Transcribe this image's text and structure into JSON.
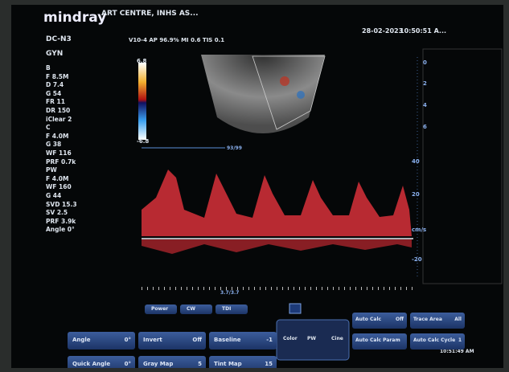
{
  "header": {
    "brand": "mindray",
    "site": "ART CENTRE, INHS AS...",
    "date": "28-02-2023",
    "time": "10:50:51 A..."
  },
  "probe": "DC-N3",
  "exam": "GYN",
  "acoustic": "V10-4  AP 96.9%  MI 0.6  TIS 0.1",
  "params": [
    "B",
    "F 8.5M",
    "D 7.4",
    "G 54",
    "FR 11",
    "DR 150",
    "iClear 2",
    "C",
    "F 4.0M",
    "G 38",
    "WF 116",
    "PRF 0.7k",
    "PW",
    "F 4.0M",
    "WF 160",
    "G 44",
    "SVD 15.3",
    "SV 2.5",
    "PRF 3.9k",
    "Angle 0°"
  ],
  "color_bar": {
    "top": "6.8",
    "bottom": "-6.8"
  },
  "color_frame": "93/99",
  "depth_scale": [
    "0",
    "2",
    "4",
    "6"
  ],
  "velocity_scale": [
    "40",
    "20",
    "cm/s",
    "-20"
  ],
  "pw_frame": "3.7/3.7",
  "mode_buttons": [
    "Power",
    "CW",
    "TDI"
  ],
  "controls": [
    {
      "label": "Angle",
      "value": "0°"
    },
    {
      "label": "Invert",
      "value": "Off"
    },
    {
      "label": "Baseline",
      "value": "-1"
    },
    {
      "label": "Quick Angle",
      "value": "0°"
    },
    {
      "label": "Gray Map",
      "value": "5"
    },
    {
      "label": "Tint Map",
      "value": "15"
    }
  ],
  "nav": {
    "left": "Color",
    "center": "PW",
    "right": "Cine"
  },
  "calc": [
    {
      "label": "Auto Calc",
      "value": "Off"
    },
    {
      "label": "Trace Area",
      "value": "All"
    },
    {
      "label": "Auto Calc Param",
      "value": ""
    },
    {
      "label": "Auto Calc Cycle",
      "value": "1"
    }
  ],
  "clock": "10:51:49 AM"
}
